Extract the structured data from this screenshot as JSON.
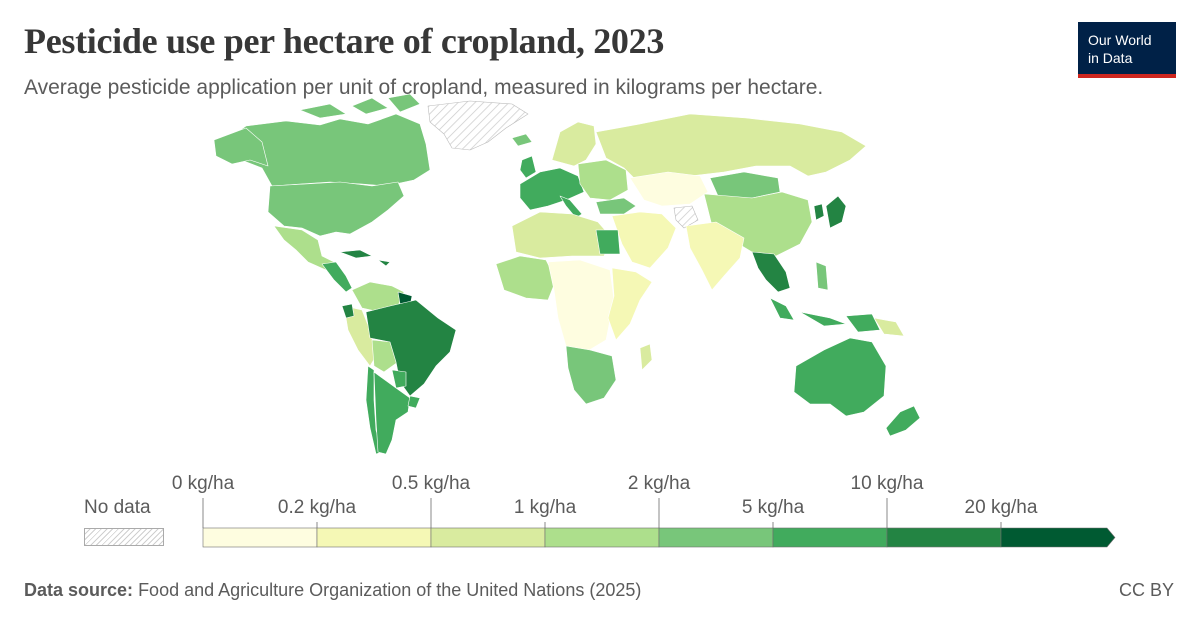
{
  "header": {
    "title": "Pesticide use per hectare of cropland, 2023",
    "subtitle": "Average pesticide application per unit of cropland, measured in kilograms per hectare."
  },
  "logo": {
    "line1": "Our World",
    "line2": "in Data",
    "bg_color": "#002147",
    "accent_color": "#ce261e"
  },
  "legend": {
    "no_data_label": "No data",
    "thresholds_top": [
      "0 kg/ha",
      "0.5 kg/ha",
      "2 kg/ha",
      "10 kg/ha"
    ],
    "thresholds_bottom": [
      "0.2 kg/ha",
      "1 kg/ha",
      "5 kg/ha",
      "20 kg/ha"
    ],
    "bins": [
      {
        "range": "0–0.2 kg/ha",
        "color": "#fefde0"
      },
      {
        "range": "0.2–0.5 kg/ha",
        "color": "#f5f8b5"
      },
      {
        "range": "0.5–1 kg/ha",
        "color": "#d9eb9f"
      },
      {
        "range": "1–2 kg/ha",
        "color": "#addf8c"
      },
      {
        "range": "2–5 kg/ha",
        "color": "#78c67a"
      },
      {
        "range": "5–10 kg/ha",
        "color": "#41ab5d"
      },
      {
        "range": "10–20 kg/ha",
        "color": "#238443"
      },
      {
        "range": ">20 kg/ha",
        "color": "#005a32"
      }
    ]
  },
  "map_regions": [
    {
      "name": "Greenland",
      "bin": "no-data"
    },
    {
      "name": "Canada",
      "bin": "2–5 kg/ha"
    },
    {
      "name": "United States",
      "bin": "2–5 kg/ha"
    },
    {
      "name": "Mexico",
      "bin": "1–2 kg/ha"
    },
    {
      "name": "Brazil",
      "bin": "10–20 kg/ha"
    },
    {
      "name": "Argentina",
      "bin": "5–10 kg/ha"
    },
    {
      "name": "Russia",
      "bin": "0.5–1 kg/ha"
    },
    {
      "name": "China",
      "bin": "1–2 kg/ha"
    },
    {
      "name": "Australia",
      "bin": "5–10 kg/ha"
    },
    {
      "name": "Japan",
      "bin": "10–20 kg/ha"
    }
  ],
  "footer": {
    "source_label": "Data source:",
    "source_text": "Food and Agriculture Organization of the United Nations (2025)",
    "license": "CC BY"
  }
}
